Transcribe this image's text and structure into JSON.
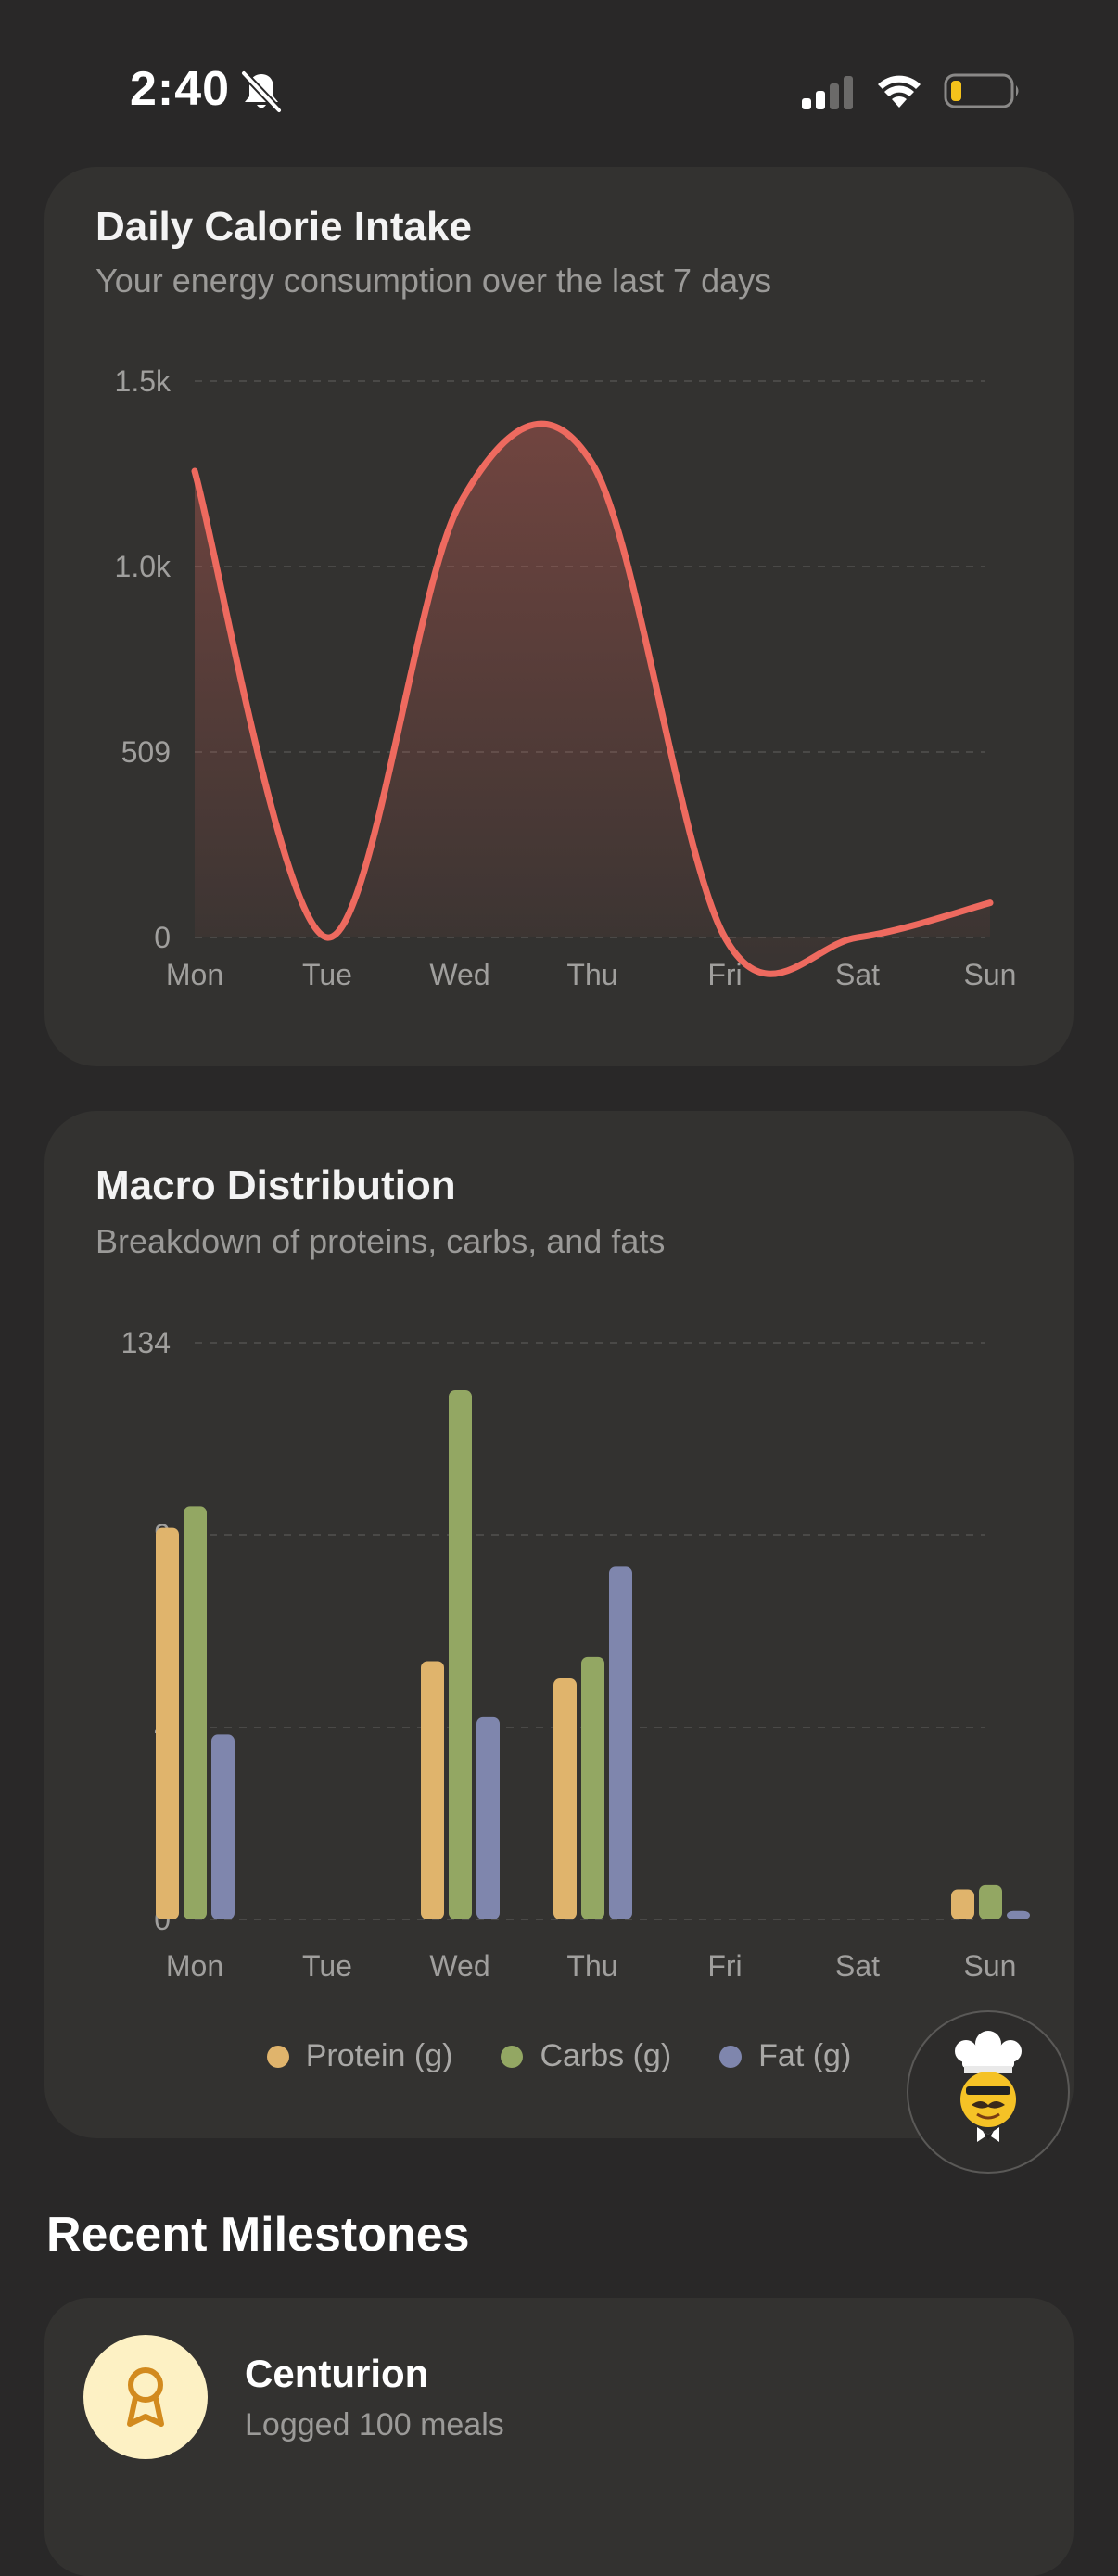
{
  "status": {
    "time": "2:40"
  },
  "calorie_card": {
    "title": "Daily Calorie Intake",
    "subtitle": "Your energy consumption over the last 7 days"
  },
  "macro_card": {
    "title": "Macro Distribution",
    "subtitle": "Breakdown of proteins, carbs, and fats",
    "legend": [
      "Protein (g)",
      "Carbs (g)",
      "Fat (g)"
    ]
  },
  "milestones": {
    "title": "Recent Milestones",
    "items": [
      {
        "title": "Centurion",
        "description": "Logged 100 meals"
      }
    ]
  },
  "colors": {
    "line": "#ee6a5f",
    "protein": "#e0b46c",
    "carbs": "#93a763",
    "fat": "#7f86ad",
    "badge": "#d28a1e"
  },
  "chart_data": [
    {
      "type": "area",
      "title": "Daily Calorie Intake",
      "subtitle": "Your energy consumption over the last 7 days",
      "categories": [
        "Mon",
        "Tue",
        "Wed",
        "Thu",
        "Fri",
        "Sat",
        "Sun"
      ],
      "yticks": [
        "0",
        "509",
        "1.0k",
        "1.5k"
      ],
      "ylim": [
        0,
        1527
      ],
      "values": [
        1280,
        0,
        1190,
        1300,
        0,
        0,
        95
      ],
      "grid": true
    },
    {
      "type": "bar",
      "title": "Macro Distribution",
      "subtitle": "Breakdown of proteins, carbs, and fats",
      "categories": [
        "Mon",
        "Tue",
        "Wed",
        "Thu",
        "Fri",
        "Sat",
        "Sun"
      ],
      "yticks": [
        "0",
        "4",
        "9",
        "134"
      ],
      "ylim": [
        0,
        134
      ],
      "series": [
        {
          "name": "Protein (g)",
          "values": [
            91,
            0,
            60,
            56,
            0,
            0,
            7
          ]
        },
        {
          "name": "Carbs (g)",
          "values": [
            96,
            0,
            123,
            61,
            0,
            0,
            8
          ]
        },
        {
          "name": "Fat (g)",
          "values": [
            43,
            0,
            47,
            82,
            0,
            0,
            2
          ]
        }
      ],
      "legend": "bottom",
      "grid": true
    }
  ]
}
